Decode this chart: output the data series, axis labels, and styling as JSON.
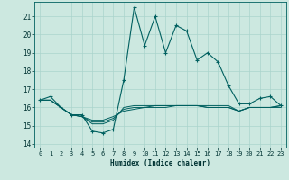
{
  "xlabel": "Humidex (Indice chaleur)",
  "ylabel": "",
  "xlim": [
    -0.5,
    23.5
  ],
  "ylim": [
    13.8,
    21.8
  ],
  "yticks": [
    14,
    15,
    16,
    17,
    18,
    19,
    20,
    21
  ],
  "xticks": [
    0,
    1,
    2,
    3,
    4,
    5,
    6,
    7,
    8,
    9,
    10,
    11,
    12,
    13,
    14,
    15,
    16,
    17,
    18,
    19,
    20,
    21,
    22,
    23
  ],
  "background_color": "#cce8e0",
  "grid_color": "#aad4cc",
  "line_color": "#006060",
  "lines": [
    [
      16.4,
      16.6,
      16.0,
      15.6,
      15.6,
      14.7,
      14.6,
      14.8,
      17.5,
      21.5,
      19.4,
      21.0,
      19.0,
      20.5,
      20.2,
      18.6,
      19.0,
      18.5,
      17.2,
      16.2,
      16.2,
      16.5,
      16.6,
      16.1
    ],
    [
      16.4,
      16.4,
      16.0,
      15.6,
      15.5,
      15.1,
      15.1,
      15.3,
      16.0,
      16.1,
      16.1,
      16.1,
      16.1,
      16.1,
      16.1,
      16.1,
      16.1,
      16.1,
      16.1,
      15.8,
      16.0,
      16.0,
      16.0,
      16.1
    ],
    [
      16.4,
      16.4,
      16.0,
      15.6,
      15.5,
      15.2,
      15.2,
      15.4,
      15.9,
      16.0,
      16.0,
      16.1,
      16.1,
      16.1,
      16.1,
      16.1,
      16.0,
      16.0,
      16.0,
      15.8,
      16.0,
      16.0,
      16.0,
      16.1
    ],
    [
      16.4,
      16.4,
      16.0,
      15.6,
      15.5,
      15.3,
      15.3,
      15.5,
      15.8,
      15.9,
      16.0,
      16.0,
      16.0,
      16.1,
      16.1,
      16.1,
      16.0,
      16.0,
      16.0,
      15.8,
      16.0,
      16.0,
      16.0,
      16.0
    ]
  ],
  "font_color": "#003333"
}
